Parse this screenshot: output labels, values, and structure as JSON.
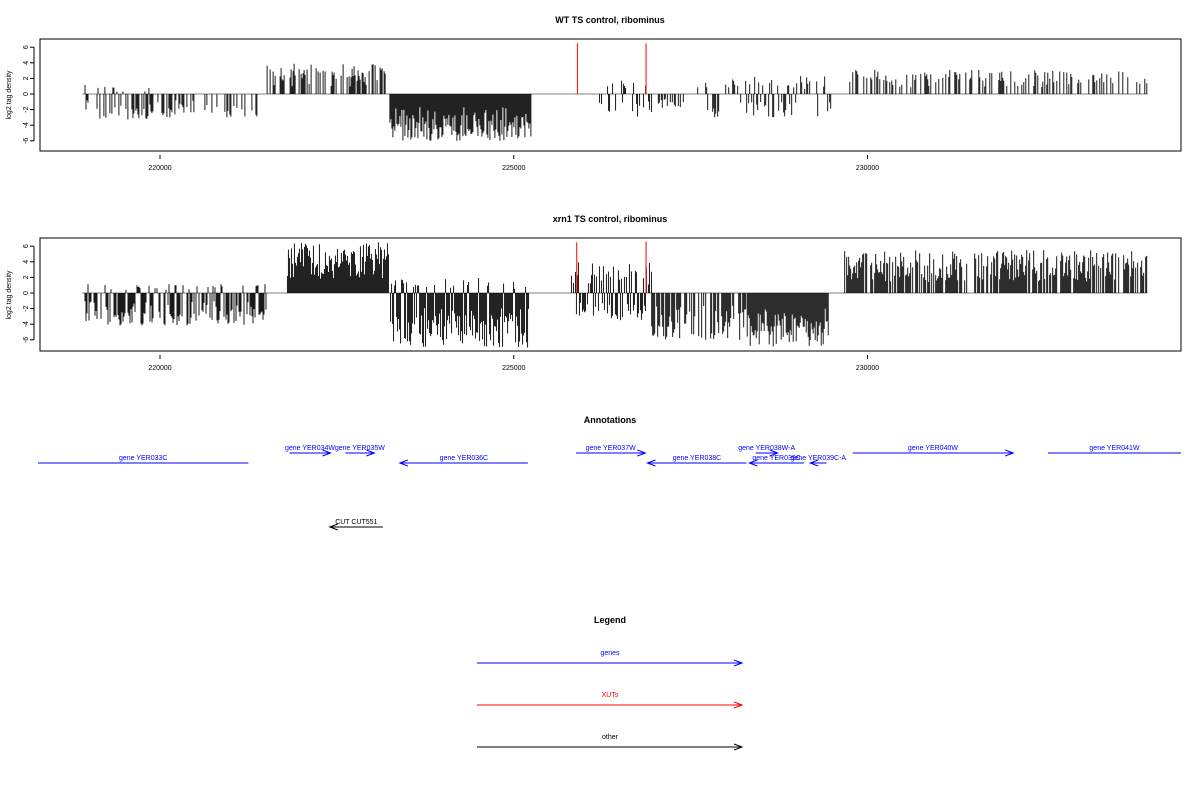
{
  "chart_data": [
    {
      "type": "bar",
      "title": "WT TS control, ribominus",
      "xlabel": "",
      "ylabel": "log2 tag density",
      "xlim": [
        218000,
        234500
      ],
      "ylim": [
        -7,
        7
      ],
      "xticks": [
        220000,
        225000,
        230000
      ],
      "xtick_labels": [
        "220000",
        "225000",
        "230000"
      ],
      "yticks": [
        6,
        4,
        2,
        0,
        -2,
        -4,
        -6
      ],
      "ytick_labels": [
        "6",
        "4",
        "2",
        "0",
        "-2",
        "-4",
        "-6"
      ],
      "grid": false,
      "track_start": 218900,
      "track_end": 233960,
      "profile": [
        {
          "x0": 218940,
          "x1": 219150,
          "min": -2.2,
          "max": 2.0,
          "density": 0.3
        },
        {
          "x0": 219150,
          "x1": 219900,
          "min": -3.3,
          "max": 1.0,
          "density": 0.5
        },
        {
          "x0": 219900,
          "x1": 221400,
          "min": -3.0,
          "max": 0.0,
          "density": 0.35
        },
        {
          "x0": 221500,
          "x1": 223200,
          "min": -0.3,
          "max": 3.9,
          "density": 0.55
        },
        {
          "x0": 223250,
          "x1": 225250,
          "min": -6.0,
          "max": 0.0,
          "density": 1.0
        },
        {
          "x0": 226200,
          "x1": 226950,
          "min": -3.0,
          "max": 2.5,
          "density": 0.45
        },
        {
          "x0": 227000,
          "x1": 227400,
          "min": -1.8,
          "max": 0.0,
          "density": 0.4
        },
        {
          "x0": 227600,
          "x1": 229500,
          "min": -3.0,
          "max": 2.3,
          "density": 0.45
        },
        {
          "x0": 229750,
          "x1": 233950,
          "min": -0.2,
          "max": 3.1,
          "density": 0.4
        }
      ],
      "xut_peaks": [
        {
          "x": 225900,
          "value": 6.5
        },
        {
          "x": 226870,
          "value": 6.5
        }
      ]
    },
    {
      "type": "bar",
      "title": "xrn1 TS control, ribominus",
      "xlabel": "",
      "ylabel": "log2 tag density",
      "xlim": [
        218000,
        234500
      ],
      "ylim": [
        -7,
        7
      ],
      "xticks": [
        220000,
        225000,
        230000
      ],
      "xtick_labels": [
        "220000",
        "225000",
        "230000"
      ],
      "yticks": [
        6,
        4,
        2,
        0,
        -2,
        -4,
        -6
      ],
      "ytick_labels": [
        "6",
        "4",
        "2",
        "0",
        "-2",
        "-4",
        "-6"
      ],
      "grid": false,
      "track_start": 218900,
      "track_end": 233960,
      "profile": [
        {
          "x0": 218940,
          "x1": 221500,
          "min": -4.2,
          "max": 1.2,
          "density": 0.7
        },
        {
          "x0": 221800,
          "x1": 223230,
          "min": -0.3,
          "max": 6.5,
          "density": 1.0
        },
        {
          "x0": 223260,
          "x1": 225220,
          "min": -7.0,
          "max": 2.0,
          "density": 1.0
        },
        {
          "x0": 225800,
          "x1": 226950,
          "min": -3.5,
          "max": 4.0,
          "density": 0.9
        },
        {
          "x0": 226950,
          "x1": 228300,
          "min": -6.0,
          "max": 0.3,
          "density": 0.6
        },
        {
          "x0": 228300,
          "x1": 229450,
          "min": -7.0,
          "max": 0.0,
          "density": 1.0
        },
        {
          "x0": 229650,
          "x1": 233950,
          "min": -0.3,
          "max": 5.5,
          "density": 0.75
        }
      ],
      "xut_peaks": [
        {
          "x": 225890,
          "value": 6.5
        },
        {
          "x": 226870,
          "value": 6.6
        }
      ]
    }
  ],
  "annotations": {
    "title": "Annotations",
    "genes": [
      {
        "label": "gene YER033C",
        "start": 218000,
        "end": 221250,
        "strand": "none",
        "row": 2
      },
      {
        "label": "gene YER034W",
        "start": 221830,
        "end": 222410,
        "strand": "+",
        "row": 1
      },
      {
        "label": "gene YER035W",
        "start": 222620,
        "end": 223030,
        "strand": "+",
        "row": 1
      },
      {
        "label": "gene YER036C",
        "start": 223390,
        "end": 225200,
        "strand": "-",
        "row": 2
      },
      {
        "label": "gene YER037W",
        "start": 225880,
        "end": 226860,
        "strand": "+",
        "row": 1
      },
      {
        "label": "gene YER038C",
        "start": 226890,
        "end": 228290,
        "strand": "-",
        "row": 2
      },
      {
        "label": "gene YER038W-A",
        "start": 228420,
        "end": 228730,
        "strand": "+",
        "row": 1
      },
      {
        "label": "gene YER039C",
        "start": 228330,
        "end": 229100,
        "strand": "-",
        "row": 2
      },
      {
        "label": "gene YER039C-A",
        "start": 229190,
        "end": 229420,
        "strand": "-",
        "row": 2
      },
      {
        "label": "gene YER040W",
        "start": 229790,
        "end": 232060,
        "strand": "+",
        "row": 1
      },
      {
        "label": "gene YER041W",
        "start": 232550,
        "end": 234630,
        "strand": "none",
        "row": 1
      }
    ],
    "other": [
      {
        "label": "CUT CUT551",
        "start": 222400,
        "end": 223150,
        "strand": "-",
        "row": 0
      }
    ]
  },
  "legend": {
    "title": "Legend",
    "items": [
      {
        "label": "genes",
        "color": "#0000ff"
      },
      {
        "label": "XUTs",
        "color": "#ff0000"
      },
      {
        "label": "other",
        "color": "#000000"
      }
    ]
  },
  "colors": {
    "genes": "#0000ff",
    "xuts": "#ff0000",
    "other": "#000000",
    "signal": "#000000",
    "baseline": "#808080"
  }
}
